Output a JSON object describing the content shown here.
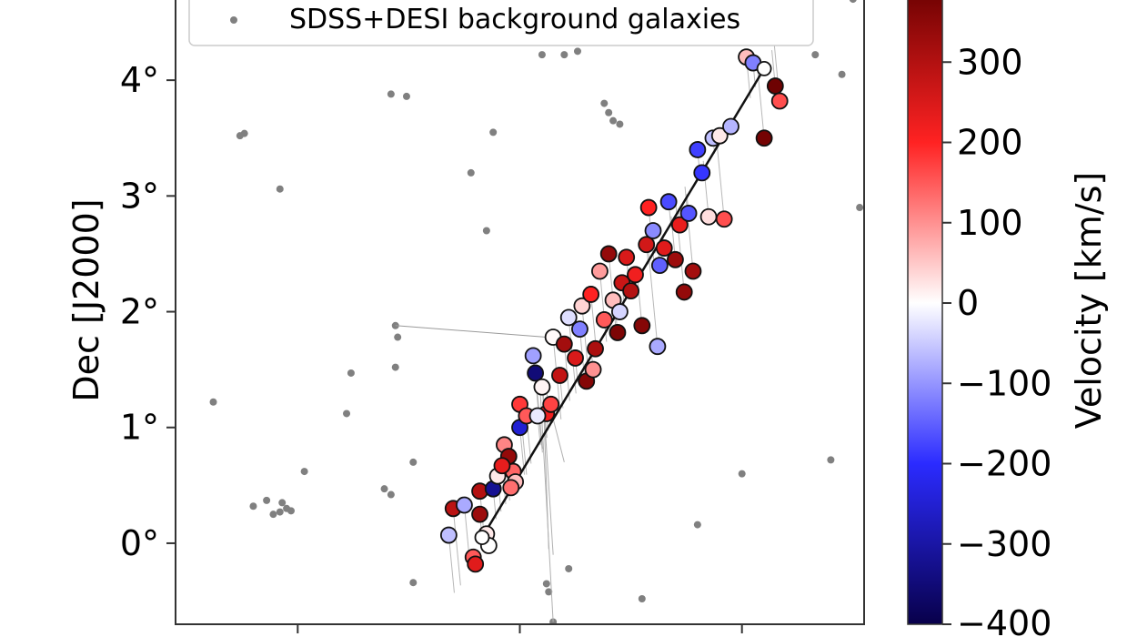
{
  "chart_data": {
    "type": "scatter",
    "title": "",
    "xlabel": "",
    "ylabel": "Dec [J2000]",
    "ylim": [
      -0.7,
      4.85
    ],
    "xlim": [
      -0.55,
      2.55
    ],
    "y_ticks": [
      {
        "value": 0,
        "label": "0°"
      },
      {
        "value": 1,
        "label": "1°"
      },
      {
        "value": 2,
        "label": "2°"
      },
      {
        "value": 3,
        "label": "3°"
      },
      {
        "value": 4,
        "label": "4°"
      }
    ],
    "x_tick_values": [
      0,
      1,
      2
    ],
    "legend": {
      "placement": "top",
      "entries": [
        {
          "label": "SDSS+DESI background galaxies",
          "marker": "small gray dot"
        }
      ]
    },
    "colorbar": {
      "label": "Velocity [km/s]",
      "range": [
        -400,
        400
      ],
      "ticks": [
        {
          "value": 300,
          "label": "300"
        },
        {
          "value": 200,
          "label": "200"
        },
        {
          "value": 100,
          "label": "100"
        },
        {
          "value": 0,
          "label": "0"
        },
        {
          "value": -100,
          "label": "−100"
        },
        {
          "value": -200,
          "label": "−200"
        },
        {
          "value": -300,
          "label": "−300"
        },
        {
          "value": -400,
          "label": "−400"
        }
      ],
      "colormap": [
        "#08004a",
        "#2b2bff",
        "#ffffff",
        "#ff2222",
        "#660000"
      ]
    },
    "background_points": [
      [
        -0.38,
        1.22
      ],
      [
        -0.26,
        3.52
      ],
      [
        -0.24,
        3.54
      ],
      [
        -0.08,
        3.06
      ],
      [
        0.42,
        3.88
      ],
      [
        0.49,
        3.86
      ],
      [
        0.88,
        3.55
      ],
      [
        0.78,
        3.2
      ],
      [
        0.85,
        2.7
      ],
      [
        1.2,
        4.22
      ],
      [
        1.26,
        4.25
      ],
      [
        1.38,
        3.8
      ],
      [
        1.4,
        3.72
      ],
      [
        1.42,
        3.65
      ],
      [
        1.45,
        3.62
      ],
      [
        2.33,
        4.22
      ],
      [
        2.45,
        4.05
      ],
      [
        2.53,
        2.9
      ],
      [
        2.5,
        4.7
      ],
      [
        2.4,
        0.72
      ],
      [
        0.24,
        1.47
      ],
      [
        0.22,
        1.12
      ],
      [
        0.44,
        1.88
      ],
      [
        0.45,
        1.78
      ],
      [
        0.44,
        1.52
      ],
      [
        0.52,
        0.7
      ],
      [
        0.39,
        0.47
      ],
      [
        0.42,
        0.42
      ],
      [
        0.52,
        -0.34
      ],
      [
        -0.14,
        0.37
      ],
      [
        -0.07,
        0.35
      ],
      [
        -0.05,
        0.3
      ],
      [
        -0.08,
        0.27
      ],
      [
        -0.03,
        0.28
      ],
      [
        -0.11,
        0.25
      ],
      [
        -0.2,
        0.32
      ],
      [
        0.03,
        0.62
      ],
      [
        1.12,
        -0.35
      ],
      [
        1.13,
        -0.42
      ],
      [
        1.15,
        -0.68
      ],
      [
        1.22,
        -0.22
      ],
      [
        1.55,
        -0.48
      ],
      [
        1.8,
        0.16
      ],
      [
        2.0,
        0.6
      ],
      [
        0.93,
        4.35
      ],
      [
        1.1,
        4.22
      ]
    ],
    "ridge_line": {
      "x": [
        0.83,
        2.1
      ],
      "y": [
        0.05,
        4.1
      ]
    },
    "members": [
      {
        "x": 0.68,
        "y": 0.07,
        "v": -60
      },
      {
        "x": 0.7,
        "y": 0.3,
        "v": 290
      },
      {
        "x": 0.75,
        "y": 0.33,
        "v": -80
      },
      {
        "x": 0.79,
        "y": -0.12,
        "v": 150
      },
      {
        "x": 0.8,
        "y": -0.18,
        "v": 240
      },
      {
        "x": 0.82,
        "y": 0.25,
        "v": 330
      },
      {
        "x": 0.82,
        "y": 0.45,
        "v": 300
      },
      {
        "x": 0.85,
        "y": 0.08,
        "v": 20
      },
      {
        "x": 0.88,
        "y": 0.47,
        "v": -320
      },
      {
        "x": 0.9,
        "y": 0.58,
        "v": 20
      },
      {
        "x": 0.93,
        "y": 0.85,
        "v": 110
      },
      {
        "x": 0.95,
        "y": 0.75,
        "v": 340
      },
      {
        "x": 0.97,
        "y": 0.62,
        "v": 140
      },
      {
        "x": 0.98,
        "y": 0.53,
        "v": 60
      },
      {
        "x": 1.0,
        "y": 1.0,
        "v": -250
      },
      {
        "x": 1.0,
        "y": 1.2,
        "v": 180
      },
      {
        "x": 1.03,
        "y": 1.1,
        "v": 150
      },
      {
        "x": 1.06,
        "y": 1.62,
        "v": -90
      },
      {
        "x": 1.07,
        "y": 1.47,
        "v": -350
      },
      {
        "x": 1.1,
        "y": 1.35,
        "v": 10
      },
      {
        "x": 1.15,
        "y": 1.78,
        "v": 5
      },
      {
        "x": 1.18,
        "y": 1.45,
        "v": 280
      },
      {
        "x": 1.2,
        "y": 1.72,
        "v": 320
      },
      {
        "x": 1.22,
        "y": 1.95,
        "v": -30
      },
      {
        "x": 1.25,
        "y": 1.6,
        "v": 250
      },
      {
        "x": 1.27,
        "y": 1.85,
        "v": -120
      },
      {
        "x": 1.28,
        "y": 2.05,
        "v": 40
      },
      {
        "x": 1.3,
        "y": 1.4,
        "v": 360
      },
      {
        "x": 1.32,
        "y": 2.15,
        "v": 200
      },
      {
        "x": 1.34,
        "y": 1.68,
        "v": 310
      },
      {
        "x": 1.36,
        "y": 2.35,
        "v": 90
      },
      {
        "x": 1.38,
        "y": 1.93,
        "v": 150
      },
      {
        "x": 1.4,
        "y": 2.5,
        "v": 340
      },
      {
        "x": 1.42,
        "y": 2.1,
        "v": 60
      },
      {
        "x": 1.44,
        "y": 1.82,
        "v": 370
      },
      {
        "x": 1.46,
        "y": 2.25,
        "v": 270
      },
      {
        "x": 1.48,
        "y": 2.47,
        "v": 250
      },
      {
        "x": 1.5,
        "y": 2.18,
        "v": 300
      },
      {
        "x": 1.52,
        "y": 2.32,
        "v": 220
      },
      {
        "x": 1.55,
        "y": 1.88,
        "v": 360
      },
      {
        "x": 1.57,
        "y": 2.58,
        "v": 260
      },
      {
        "x": 1.6,
        "y": 2.7,
        "v": -110
      },
      {
        "x": 1.62,
        "y": 1.7,
        "v": -80
      },
      {
        "x": 1.63,
        "y": 2.4,
        "v": -150
      },
      {
        "x": 1.65,
        "y": 2.55,
        "v": 240
      },
      {
        "x": 1.67,
        "y": 2.95,
        "v": -170
      },
      {
        "x": 1.7,
        "y": 2.45,
        "v": 330
      },
      {
        "x": 1.72,
        "y": 2.75,
        "v": 230
      },
      {
        "x": 1.74,
        "y": 2.17,
        "v": 340
      },
      {
        "x": 1.76,
        "y": 2.85,
        "v": -160
      },
      {
        "x": 1.78,
        "y": 2.35,
        "v": 320
      },
      {
        "x": 1.8,
        "y": 3.4,
        "v": -180
      },
      {
        "x": 1.82,
        "y": 3.2,
        "v": -190
      },
      {
        "x": 1.85,
        "y": 2.82,
        "v": 30
      },
      {
        "x": 1.87,
        "y": 3.5,
        "v": -60
      },
      {
        "x": 1.9,
        "y": 3.52,
        "v": 20
      },
      {
        "x": 1.92,
        "y": 2.8,
        "v": 160
      },
      {
        "x": 1.95,
        "y": 3.6,
        "v": -70
      },
      {
        "x": 2.02,
        "y": 4.2,
        "v": 60
      },
      {
        "x": 2.05,
        "y": 4.15,
        "v": -120
      },
      {
        "x": 2.1,
        "y": 3.5,
        "v": 380
      },
      {
        "x": 2.15,
        "y": 3.95,
        "v": 390
      },
      {
        "x": 2.17,
        "y": 3.82,
        "v": 160
      },
      {
        "x": 1.12,
        "y": 1.12,
        "v": 220
      },
      {
        "x": 1.14,
        "y": 1.2,
        "v": 170
      },
      {
        "x": 1.08,
        "y": 1.1,
        "v": -20
      },
      {
        "x": 0.92,
        "y": 0.67,
        "v": 230
      },
      {
        "x": 0.96,
        "y": 0.48,
        "v": 130
      },
      {
        "x": 0.86,
        "y": -0.02,
        "v": 0
      },
      {
        "x": 1.33,
        "y": 1.5,
        "v": 100
      },
      {
        "x": 1.45,
        "y": 2.0,
        "v": -40
      },
      {
        "x": 1.58,
        "y": 2.9,
        "v": 200
      }
    ]
  }
}
